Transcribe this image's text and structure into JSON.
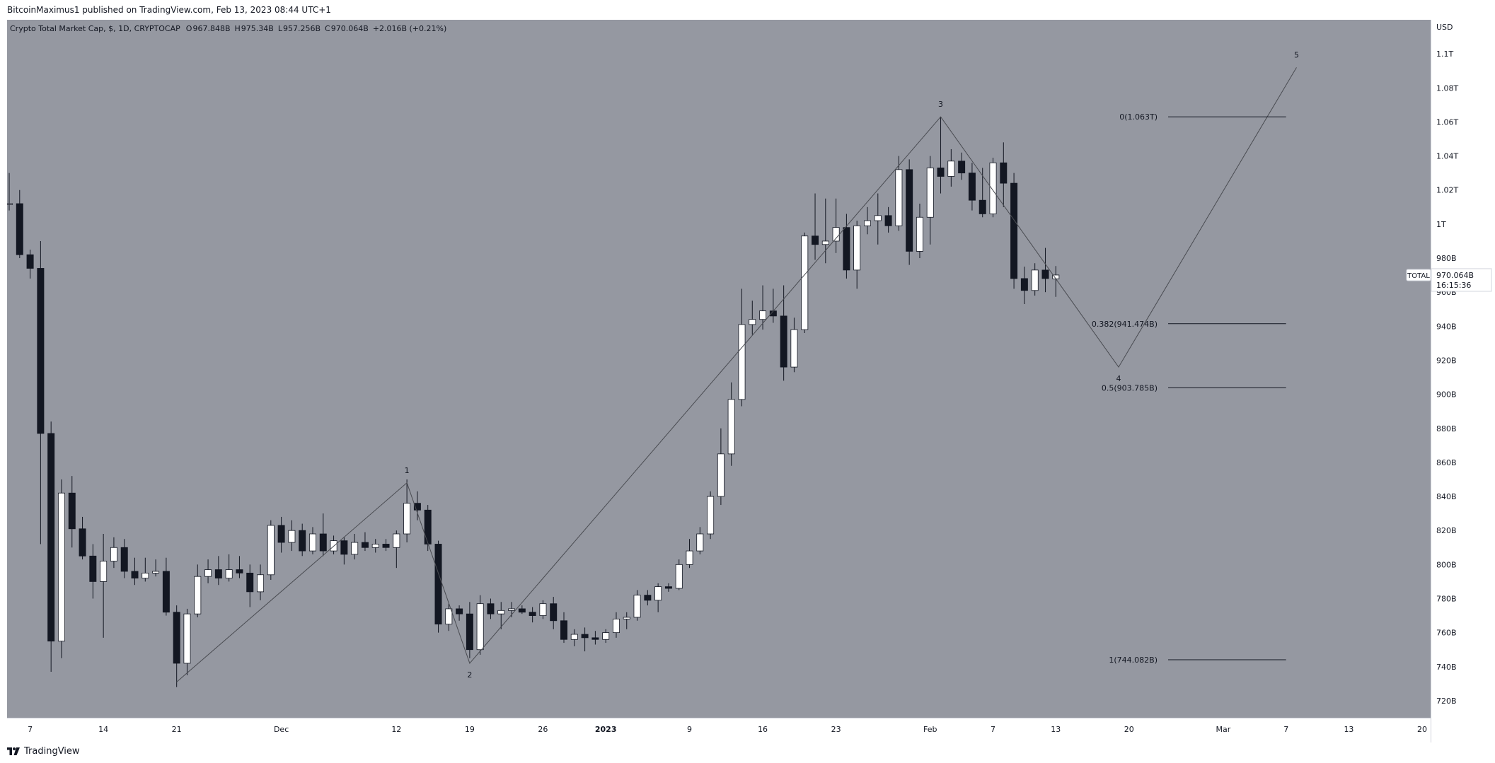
{
  "header": {
    "published_text": "BitcoinMaximus1 published on TradingView.com, Feb 13, 2023 08:44 UTC+1"
  },
  "footer": {
    "brand": "TradingView",
    "logo_icon": "tradingview-logo-icon"
  },
  "colors": {
    "plot_bg": "#9598a1",
    "bull_body": "#ffffff",
    "bear_body": "#131722",
    "wick": "#131722",
    "wave_line": "#4a4c52",
    "fib_line": "#131722",
    "axis_bg": "#ffffff",
    "axis_text": "#131722"
  },
  "chart_data": {
    "type": "candlestick",
    "title": "Crypto Total Market Cap, $, 1D, CRYPTOCAP",
    "ohlc_legend": {
      "o_label": "O",
      "o_value": "967.848B",
      "h_label": "H",
      "h_value": "975.34B",
      "l_label": "L",
      "l_value": "957.256B",
      "c_label": "C",
      "c_value": "970.064B",
      "change": "+2.016B (+0.21%)"
    },
    "currency_label": "USD",
    "symbol_tag": "TOTAL",
    "last_price_label": "970.064B",
    "countdown_label": "16:15:36",
    "last_close": 970.064,
    "y_axis": {
      "unit": "B",
      "range": [
        710,
        1120
      ],
      "ticks": [
        720,
        740,
        760,
        780,
        800,
        820,
        840,
        860,
        880,
        900,
        920,
        940,
        960,
        980,
        1000,
        1020,
        1040,
        1060,
        1080,
        1100
      ],
      "tick_labels": [
        "720B",
        "740B",
        "760B",
        "780B",
        "800B",
        "820B",
        "840B",
        "860B",
        "880B",
        "900B",
        "920B",
        "940B",
        "960B",
        "980B",
        "1T",
        "1.02T",
        "1.04T",
        "1.06T",
        "1.08T",
        "1.1T"
      ]
    },
    "x_axis": {
      "start_date": "2022-11-05",
      "end_date": "2023-03-20",
      "ticks": [
        {
          "date": "2022-11-07",
          "label": "7"
        },
        {
          "date": "2022-11-14",
          "label": "14"
        },
        {
          "date": "2022-11-21",
          "label": "21"
        },
        {
          "date": "2022-12-01",
          "label": "Dec"
        },
        {
          "date": "2022-12-12",
          "label": "12"
        },
        {
          "date": "2022-12-19",
          "label": "19"
        },
        {
          "date": "2022-12-26",
          "label": "26"
        },
        {
          "date": "2023-01-01",
          "label": "2023"
        },
        {
          "date": "2023-01-09",
          "label": "9"
        },
        {
          "date": "2023-01-16",
          "label": "16"
        },
        {
          "date": "2023-01-23",
          "label": "23"
        },
        {
          "date": "2023-02-01",
          "label": "Feb"
        },
        {
          "date": "2023-02-07",
          "label": "7"
        },
        {
          "date": "2023-02-13",
          "label": "13"
        },
        {
          "date": "2023-02-20",
          "label": "20"
        },
        {
          "date": "2023-03-01",
          "label": "Mar"
        },
        {
          "date": "2023-03-07",
          "label": "7"
        },
        {
          "date": "2023-03-13",
          "label": "13"
        },
        {
          "date": "2023-03-20",
          "label": "20"
        }
      ]
    },
    "candles": [
      {
        "date": "2022-11-05",
        "o": 1012,
        "h": 1030,
        "l": 1008,
        "c": 1012
      },
      {
        "date": "2022-11-06",
        "o": 1012,
        "h": 1020,
        "l": 980,
        "c": 982
      },
      {
        "date": "2022-11-07",
        "o": 982,
        "h": 985,
        "l": 968,
        "c": 974
      },
      {
        "date": "2022-11-08",
        "o": 974,
        "h": 990,
        "l": 812,
        "c": 877
      },
      {
        "date": "2022-11-09",
        "o": 877,
        "h": 884,
        "l": 737,
        "c": 755
      },
      {
        "date": "2022-11-10",
        "o": 755,
        "h": 850,
        "l": 745,
        "c": 842
      },
      {
        "date": "2022-11-11",
        "o": 842,
        "h": 852,
        "l": 810,
        "c": 821
      },
      {
        "date": "2022-11-12",
        "o": 821,
        "h": 828,
        "l": 803,
        "c": 805
      },
      {
        "date": "2022-11-13",
        "o": 805,
        "h": 812,
        "l": 780,
        "c": 790
      },
      {
        "date": "2022-11-14",
        "o": 790,
        "h": 818,
        "l": 757,
        "c": 802
      },
      {
        "date": "2022-11-15",
        "o": 802,
        "h": 816,
        "l": 798,
        "c": 810
      },
      {
        "date": "2022-11-16",
        "o": 810,
        "h": 815,
        "l": 792,
        "c": 796
      },
      {
        "date": "2022-11-17",
        "o": 796,
        "h": 804,
        "l": 788,
        "c": 792
      },
      {
        "date": "2022-11-18",
        "o": 792,
        "h": 804,
        "l": 790,
        "c": 795
      },
      {
        "date": "2022-11-19",
        "o": 795,
        "h": 803,
        "l": 793,
        "c": 796
      },
      {
        "date": "2022-11-20",
        "o": 796,
        "h": 804,
        "l": 770,
        "c": 772
      },
      {
        "date": "2022-11-21",
        "o": 772,
        "h": 776,
        "l": 728,
        "c": 742
      },
      {
        "date": "2022-11-22",
        "o": 742,
        "h": 774,
        "l": 735,
        "c": 771
      },
      {
        "date": "2022-11-23",
        "o": 771,
        "h": 800,
        "l": 769,
        "c": 793
      },
      {
        "date": "2022-11-24",
        "o": 793,
        "h": 803,
        "l": 789,
        "c": 797
      },
      {
        "date": "2022-11-25",
        "o": 797,
        "h": 805,
        "l": 788,
        "c": 792
      },
      {
        "date": "2022-11-26",
        "o": 792,
        "h": 806,
        "l": 790,
        "c": 797
      },
      {
        "date": "2022-11-27",
        "o": 797,
        "h": 805,
        "l": 792,
        "c": 795
      },
      {
        "date": "2022-11-28",
        "o": 795,
        "h": 800,
        "l": 775,
        "c": 784
      },
      {
        "date": "2022-11-29",
        "o": 784,
        "h": 800,
        "l": 779,
        "c": 794
      },
      {
        "date": "2022-11-30",
        "o": 794,
        "h": 826,
        "l": 791,
        "c": 823
      },
      {
        "date": "2022-12-01",
        "o": 823,
        "h": 828,
        "l": 807,
        "c": 813
      },
      {
        "date": "2022-12-02",
        "o": 813,
        "h": 826,
        "l": 808,
        "c": 820
      },
      {
        "date": "2022-12-03",
        "o": 820,
        "h": 824,
        "l": 805,
        "c": 808
      },
      {
        "date": "2022-12-04",
        "o": 808,
        "h": 822,
        "l": 806,
        "c": 818
      },
      {
        "date": "2022-12-05",
        "o": 818,
        "h": 830,
        "l": 805,
        "c": 808
      },
      {
        "date": "2022-12-06",
        "o": 808,
        "h": 817,
        "l": 806,
        "c": 814
      },
      {
        "date": "2022-12-07",
        "o": 814,
        "h": 816,
        "l": 800,
        "c": 806
      },
      {
        "date": "2022-12-08",
        "o": 806,
        "h": 818,
        "l": 803,
        "c": 813
      },
      {
        "date": "2022-12-09",
        "o": 813,
        "h": 819,
        "l": 808,
        "c": 810
      },
      {
        "date": "2022-12-10",
        "o": 810,
        "h": 815,
        "l": 807,
        "c": 812
      },
      {
        "date": "2022-12-11",
        "o": 812,
        "h": 815,
        "l": 808,
        "c": 810
      },
      {
        "date": "2022-12-12",
        "o": 810,
        "h": 820,
        "l": 798,
        "c": 818
      },
      {
        "date": "2022-12-13",
        "o": 818,
        "h": 850,
        "l": 813,
        "c": 836
      },
      {
        "date": "2022-12-14",
        "o": 836,
        "h": 843,
        "l": 826,
        "c": 832
      },
      {
        "date": "2022-12-15",
        "o": 832,
        "h": 835,
        "l": 808,
        "c": 812
      },
      {
        "date": "2022-12-16",
        "o": 812,
        "h": 814,
        "l": 760,
        "c": 765
      },
      {
        "date": "2022-12-17",
        "o": 765,
        "h": 777,
        "l": 761,
        "c": 774
      },
      {
        "date": "2022-12-18",
        "o": 774,
        "h": 776,
        "l": 767,
        "c": 771
      },
      {
        "date": "2022-12-19",
        "o": 771,
        "h": 778,
        "l": 745,
        "c": 750
      },
      {
        "date": "2022-12-20",
        "o": 750,
        "h": 782,
        "l": 747,
        "c": 777
      },
      {
        "date": "2022-12-21",
        "o": 777,
        "h": 780,
        "l": 768,
        "c": 771
      },
      {
        "date": "2022-12-22",
        "o": 771,
        "h": 778,
        "l": 762,
        "c": 773
      },
      {
        "date": "2022-12-23",
        "o": 773,
        "h": 778,
        "l": 769,
        "c": 774
      },
      {
        "date": "2022-12-24",
        "o": 774,
        "h": 776,
        "l": 771,
        "c": 772
      },
      {
        "date": "2022-12-25",
        "o": 772,
        "h": 775,
        "l": 766,
        "c": 770
      },
      {
        "date": "2022-12-26",
        "o": 770,
        "h": 779,
        "l": 768,
        "c": 777
      },
      {
        "date": "2022-12-27",
        "o": 777,
        "h": 781,
        "l": 762,
        "c": 767
      },
      {
        "date": "2022-12-28",
        "o": 767,
        "h": 772,
        "l": 754,
        "c": 756
      },
      {
        "date": "2022-12-29",
        "o": 756,
        "h": 762,
        "l": 752,
        "c": 759
      },
      {
        "date": "2022-12-30",
        "o": 759,
        "h": 763,
        "l": 749,
        "c": 757
      },
      {
        "date": "2022-12-31",
        "o": 757,
        "h": 761,
        "l": 753,
        "c": 756
      },
      {
        "date": "2023-01-01",
        "o": 756,
        "h": 762,
        "l": 754,
        "c": 760
      },
      {
        "date": "2023-01-02",
        "o": 760,
        "h": 772,
        "l": 757,
        "c": 768
      },
      {
        "date": "2023-01-03",
        "o": 768,
        "h": 772,
        "l": 762,
        "c": 769
      },
      {
        "date": "2023-01-04",
        "o": 769,
        "h": 785,
        "l": 767,
        "c": 782
      },
      {
        "date": "2023-01-05",
        "o": 782,
        "h": 785,
        "l": 776,
        "c": 779
      },
      {
        "date": "2023-01-06",
        "o": 779,
        "h": 789,
        "l": 772,
        "c": 787
      },
      {
        "date": "2023-01-07",
        "o": 787,
        "h": 789,
        "l": 784,
        "c": 786
      },
      {
        "date": "2023-01-08",
        "o": 786,
        "h": 803,
        "l": 785,
        "c": 800
      },
      {
        "date": "2023-01-09",
        "o": 800,
        "h": 815,
        "l": 798,
        "c": 808
      },
      {
        "date": "2023-01-10",
        "o": 808,
        "h": 822,
        "l": 806,
        "c": 818
      },
      {
        "date": "2023-01-11",
        "o": 818,
        "h": 843,
        "l": 815,
        "c": 840
      },
      {
        "date": "2023-01-12",
        "o": 840,
        "h": 880,
        "l": 835,
        "c": 865
      },
      {
        "date": "2023-01-13",
        "o": 865,
        "h": 907,
        "l": 858,
        "c": 897
      },
      {
        "date": "2023-01-14",
        "o": 897,
        "h": 962,
        "l": 893,
        "c": 941
      },
      {
        "date": "2023-01-15",
        "o": 941,
        "h": 955,
        "l": 935,
        "c": 944
      },
      {
        "date": "2023-01-16",
        "o": 944,
        "h": 964,
        "l": 938,
        "c": 949
      },
      {
        "date": "2023-01-17",
        "o": 949,
        "h": 962,
        "l": 942,
        "c": 946
      },
      {
        "date": "2023-01-18",
        "o": 946,
        "h": 964,
        "l": 908,
        "c": 916
      },
      {
        "date": "2023-01-19",
        "o": 916,
        "h": 945,
        "l": 913,
        "c": 938
      },
      {
        "date": "2023-01-20",
        "o": 938,
        "h": 995,
        "l": 936,
        "c": 993
      },
      {
        "date": "2023-01-21",
        "o": 993,
        "h": 1018,
        "l": 979,
        "c": 988
      },
      {
        "date": "2023-01-22",
        "o": 988,
        "h": 1015,
        "l": 977,
        "c": 990
      },
      {
        "date": "2023-01-23",
        "o": 990,
        "h": 1015,
        "l": 983,
        "c": 998
      },
      {
        "date": "2023-01-24",
        "o": 998,
        "h": 1006,
        "l": 968,
        "c": 973
      },
      {
        "date": "2023-01-25",
        "o": 973,
        "h": 1002,
        "l": 962,
        "c": 999
      },
      {
        "date": "2023-01-26",
        "o": 999,
        "h": 1010,
        "l": 994,
        "c": 1002
      },
      {
        "date": "2023-01-27",
        "o": 1002,
        "h": 1018,
        "l": 988,
        "c": 1005
      },
      {
        "date": "2023-01-28",
        "o": 1005,
        "h": 1010,
        "l": 995,
        "c": 999
      },
      {
        "date": "2023-01-29",
        "o": 999,
        "h": 1040,
        "l": 996,
        "c": 1032
      },
      {
        "date": "2023-01-30",
        "o": 1032,
        "h": 1038,
        "l": 976,
        "c": 984
      },
      {
        "date": "2023-01-31",
        "o": 984,
        "h": 1012,
        "l": 980,
        "c": 1004
      },
      {
        "date": "2023-02-01",
        "o": 1004,
        "h": 1040,
        "l": 988,
        "c": 1033
      },
      {
        "date": "2023-02-02",
        "o": 1033,
        "h": 1063,
        "l": 1018,
        "c": 1028
      },
      {
        "date": "2023-02-03",
        "o": 1028,
        "h": 1044,
        "l": 1022,
        "c": 1037
      },
      {
        "date": "2023-02-04",
        "o": 1037,
        "h": 1042,
        "l": 1026,
        "c": 1030
      },
      {
        "date": "2023-02-05",
        "o": 1030,
        "h": 1036,
        "l": 1008,
        "c": 1014
      },
      {
        "date": "2023-02-06",
        "o": 1014,
        "h": 1033,
        "l": 1004,
        "c": 1006
      },
      {
        "date": "2023-02-07",
        "o": 1006,
        "h": 1039,
        "l": 1004,
        "c": 1036
      },
      {
        "date": "2023-02-08",
        "o": 1036,
        "h": 1048,
        "l": 1010,
        "c": 1024
      },
      {
        "date": "2023-02-09",
        "o": 1024,
        "h": 1030,
        "l": 962,
        "c": 968
      },
      {
        "date": "2023-02-10",
        "o": 968,
        "h": 975,
        "l": 953,
        "c": 961
      },
      {
        "date": "2023-02-11",
        "o": 961,
        "h": 977,
        "l": 958,
        "c": 973
      },
      {
        "date": "2023-02-12",
        "o": 973,
        "h": 986,
        "l": 960,
        "c": 968
      },
      {
        "date": "2023-02-13",
        "o": 967.848,
        "h": 975.34,
        "l": 957.256,
        "c": 970.064
      }
    ],
    "wave_path": [
      {
        "date": "2022-11-21",
        "value": 731
      },
      {
        "date": "2022-12-13",
        "value": 848
      },
      {
        "date": "2022-12-19",
        "value": 742
      },
      {
        "date": "2023-02-02",
        "value": 1063
      },
      {
        "date": "2023-02-19",
        "value": 916
      },
      {
        "date": "2023-03-08",
        "value": 1092
      }
    ],
    "wave_labels": [
      {
        "label": "1",
        "date": "2022-12-13",
        "value": 848,
        "position": "above"
      },
      {
        "label": "2",
        "date": "2022-12-19",
        "value": 742,
        "position": "below"
      },
      {
        "label": "3",
        "date": "2023-02-02",
        "value": 1063,
        "position": "above"
      },
      {
        "label": "4",
        "date": "2023-02-19",
        "value": 916,
        "position": "below"
      },
      {
        "label": "5",
        "date": "2023-03-08",
        "value": 1092,
        "position": "above"
      }
    ],
    "fib_levels": [
      {
        "label": "0(1.063T)",
        "value": 1063
      },
      {
        "label": "0.382(941.474B)",
        "value": 941.474
      },
      {
        "label": "0.5(903.785B)",
        "value": 903.785
      },
      {
        "label": "1(744.082B)",
        "value": 744.082
      }
    ],
    "fib_range": {
      "start_date": "2023-02-19",
      "end_date": "2023-03-07"
    }
  }
}
